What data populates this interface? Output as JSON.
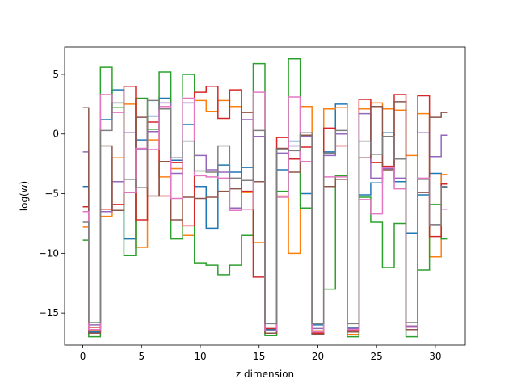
{
  "chart_data": {
    "type": "line",
    "step": "mid",
    "xlabel": "z dimension",
    "ylabel": "log(w)",
    "xlim": [
      -1.55,
      32.55
    ],
    "ylim": [
      -17.7,
      7.3
    ],
    "x": [
      0,
      1,
      2,
      3,
      4,
      5,
      6,
      7,
      8,
      9,
      10,
      11,
      12,
      13,
      14,
      15,
      16,
      17,
      18,
      19,
      20,
      21,
      22,
      23,
      24,
      25,
      26,
      27,
      28,
      29,
      30,
      31
    ],
    "xticks": [
      0,
      5,
      10,
      15,
      20,
      25,
      30
    ],
    "yticks": [
      5,
      0,
      -5,
      -10,
      -15
    ],
    "ytick_labels": [
      "5",
      "0",
      "−5",
      "−10",
      "−15"
    ],
    "grid": false,
    "series": [
      {
        "color": "#1f77b4",
        "values": [
          -4.4,
          -16.6,
          1.2,
          3.7,
          -8.8,
          -0.5,
          1.5,
          3.0,
          -2.2,
          0.8,
          -4.4,
          -7.9,
          -2.6,
          -3.2,
          -2.8,
          -0.2,
          -16.4,
          -3.0,
          -0.6,
          -5.0,
          -16.0,
          -1.5,
          2.5,
          -16.2,
          -5.1,
          -4.1,
          0.1,
          -4.0,
          -8.3,
          -5.1,
          -3.3,
          -4.5
        ]
      },
      {
        "color": "#ff7f0e",
        "values": [
          -7.8,
          -16.5,
          -6.9,
          -2.0,
          2.5,
          -9.5,
          -0.5,
          -3.6,
          -2.9,
          -8.5,
          2.8,
          1.9,
          2.8,
          2.3,
          -4.9,
          -9.1,
          -16.7,
          -5.2,
          -10.0,
          2.3,
          -16.5,
          2.1,
          2.2,
          -16.8,
          2.1,
          2.6,
          2.1,
          2.0,
          -1.8,
          1.7,
          -10.3,
          -3.4
        ]
      },
      {
        "color": "#2ca02c",
        "values": [
          -8.9,
          -17.0,
          5.6,
          2.2,
          -10.2,
          3.0,
          0.4,
          5.2,
          -8.8,
          5.0,
          -10.8,
          -11.0,
          -11.8,
          -11.0,
          -8.5,
          5.9,
          -16.9,
          -4.8,
          6.3,
          -6.2,
          -16.8,
          -13.0,
          -3.5,
          -17.0,
          -5.3,
          -7.4,
          -11.2,
          -7.5,
          -17.0,
          -11.4,
          -5.9,
          -8.8
        ]
      },
      {
        "color": "#d62728",
        "values": [
          -6.1,
          -16.2,
          -6.3,
          -5.9,
          4.0,
          -7.2,
          1.0,
          -5.2,
          -2.4,
          -7.7,
          3.5,
          4.0,
          1.3,
          3.7,
          -4.8,
          -12.0,
          -16.3,
          -0.3,
          -2.1,
          -1.1,
          -16.7,
          0.5,
          -1.0,
          -16.5,
          2.9,
          -2.4,
          -2.7,
          3.3,
          -16.1,
          3.2,
          -8.6,
          -4.2
        ]
      },
      {
        "color": "#9467bd",
        "values": [
          -1.5,
          -16.0,
          -6.5,
          -4.0,
          0.1,
          -1.3,
          0.2,
          2.6,
          -3.3,
          2.6,
          -1.8,
          -3.0,
          -3.2,
          -6.2,
          1.2,
          -0.2,
          -16.5,
          -1.6,
          -1.0,
          -0.2,
          -16.3,
          -1.8,
          0.0,
          -16.3,
          1.7,
          -3.7,
          -2.9,
          -3.7,
          -16.1,
          0.1,
          -1.9,
          -0.1
        ]
      },
      {
        "color": "#8c564b",
        "values": [
          2.2,
          -16.7,
          -1.0,
          -6.4,
          -4.9,
          1.4,
          -5.2,
          -2.3,
          -7.2,
          -5.3,
          -5.4,
          -5.3,
          -4.8,
          -4.6,
          1.8,
          -4.0,
          -16.7,
          -1.2,
          -3.2,
          -0.1,
          -16.8,
          -4.4,
          -3.8,
          -16.6,
          -2.0,
          2.3,
          -3.0,
          2.7,
          -16.4,
          -4.9,
          1.4,
          1.8
        ]
      },
      {
        "color": "#e377c2",
        "values": [
          -6.5,
          -16.4,
          3.3,
          1.8,
          -4.9,
          -1.2,
          -1.3,
          2.3,
          -5.4,
          3.0,
          -3.5,
          -3.6,
          -3.7,
          -6.4,
          -6.3,
          3.5,
          -16.5,
          -5.3,
          3.1,
          -2.3,
          -16.6,
          -3.6,
          -3.6,
          -16.4,
          -5.5,
          -6.7,
          -2.8,
          -4.6,
          -16.2,
          -3.7,
          -7.6,
          -6.3
        ]
      },
      {
        "color": "#7f7f7f",
        "values": [
          -7.4,
          -15.8,
          0.3,
          2.6,
          -3.8,
          -4.5,
          2.8,
          2.1,
          -2.0,
          -0.6,
          -3.1,
          -3.2,
          -1.0,
          -3.7,
          -3.9,
          0.3,
          -15.9,
          -1.3,
          -1.4,
          0.1,
          -15.9,
          -1.6,
          0.3,
          -15.9,
          -0.6,
          -1.7,
          -0.2,
          -2.1,
          -15.8,
          -3.8,
          -7.6,
          -4.4
        ]
      }
    ]
  }
}
